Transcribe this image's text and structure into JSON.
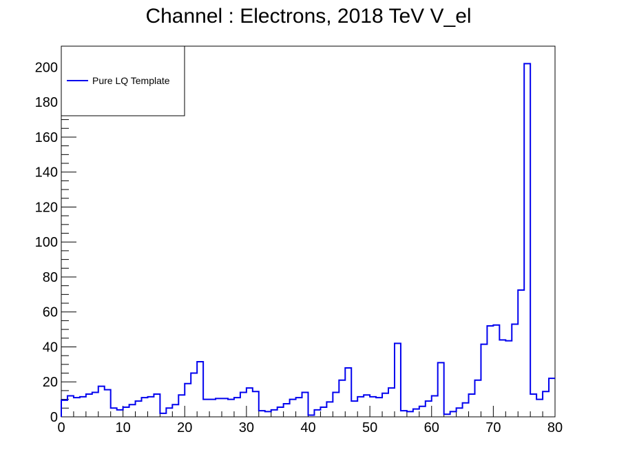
{
  "chart_data": {
    "type": "line",
    "title": "Channel : Electrons, 2018 TeV V_el",
    "xlabel": "",
    "ylabel": "",
    "xlim": [
      0,
      80
    ],
    "ylim": [
      0,
      212
    ],
    "x_ticks": [
      0,
      10,
      20,
      30,
      40,
      50,
      60,
      70,
      80
    ],
    "y_ticks": [
      0,
      20,
      40,
      60,
      80,
      100,
      120,
      140,
      160,
      180,
      200
    ],
    "bin_width": 1,
    "legend_position": "top-left",
    "grid": false,
    "series": [
      {
        "name": "Pure LQ Template",
        "color": "#0000ee",
        "values": [
          9.5,
          12,
          11,
          11.5,
          13,
          14,
          17.5,
          15.5,
          5,
          4,
          5.5,
          7,
          9,
          11,
          11.5,
          13,
          2,
          5,
          7,
          12.5,
          19,
          25,
          31.5,
          10,
          10,
          10.5,
          10.5,
          10,
          11,
          14,
          16.5,
          14.5,
          3.5,
          3,
          4,
          5.5,
          7.5,
          10,
          11,
          14,
          1,
          4,
          5.5,
          8.5,
          14,
          21,
          28,
          9,
          11.5,
          12.5,
          11.5,
          11,
          13.5,
          16.5,
          42,
          3.5,
          3,
          4.5,
          6,
          9,
          12,
          31,
          1.5,
          3,
          5,
          8,
          13,
          21,
          41.5,
          52,
          52.5,
          44,
          43.5,
          53,
          72.5,
          202,
          13,
          10,
          14.5,
          22
        ]
      }
    ]
  }
}
